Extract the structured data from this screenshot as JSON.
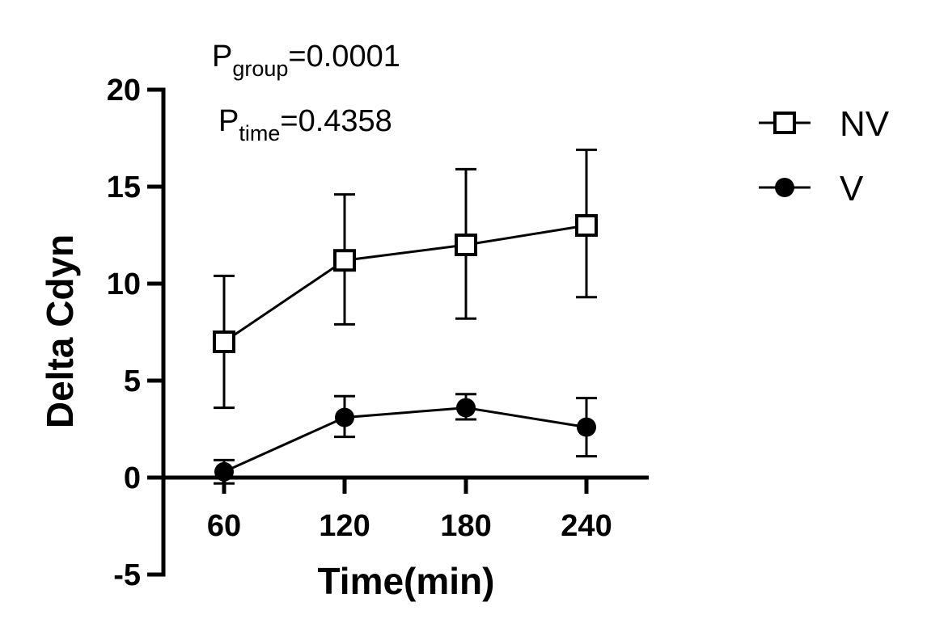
{
  "chart_data": {
    "type": "line",
    "xlabel": "Time(min)",
    "ylabel": "Delta Cdyn",
    "x": [
      60,
      120,
      180,
      240
    ],
    "x_ticks": [
      "60",
      "120",
      "180",
      "240"
    ],
    "ylim": [
      -5,
      20
    ],
    "y_ticks": [
      "-5",
      "0",
      "5",
      "10",
      "15",
      "20"
    ],
    "grid": false,
    "legend_position": "right",
    "series": [
      {
        "name": "NV",
        "marker": "open-square",
        "color": "#000000",
        "values": [
          7.0,
          11.2,
          12.0,
          13.0
        ],
        "error_upper": [
          10.4,
          14.6,
          15.9,
          16.9
        ],
        "error_lower": [
          3.6,
          7.9,
          8.2,
          9.3
        ]
      },
      {
        "name": "V",
        "marker": "filled-circle",
        "color": "#000000",
        "values": [
          0.3,
          3.1,
          3.6,
          2.6
        ],
        "error_upper": [
          0.9,
          4.2,
          4.3,
          4.1
        ],
        "error_lower": [
          -0.3,
          2.1,
          3.0,
          1.1
        ]
      }
    ],
    "annotations": [
      {
        "base": "P",
        "sub": "group",
        "text": "=0.0001"
      },
      {
        "base": "P",
        "sub": "time",
        "text": "=0.4358"
      }
    ]
  }
}
